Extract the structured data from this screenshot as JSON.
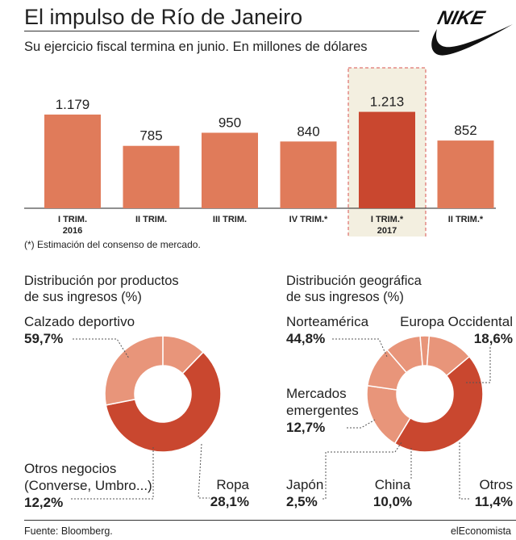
{
  "header": {
    "title": "El impulso de Río de Janeiro",
    "subtitle": "Su ejercicio fiscal termina en junio. En millones de dólares"
  },
  "logo_text": "NIKE",
  "colors": {
    "bar": "#e07b5a",
    "bar_highlight": "#c9472f",
    "highlight_bg": "#f3efe0",
    "highlight_border": "#d9534f",
    "pie_dark": "#c9472f",
    "pie_light": "#e8957a",
    "leader": "#555555"
  },
  "footnote": "(*) Estimación del consenso de mercado.",
  "products": {
    "title_line1": "Distribución por productos",
    "title_line2": "de sus ingresos (%)"
  },
  "geo": {
    "title_line1": "Distribución geográfica",
    "title_line2": "de sus ingresos (%)"
  },
  "footer": {
    "source": "Fuente: Bloomberg.",
    "brand": "elEconomista"
  },
  "chart_data": [
    {
      "type": "bar",
      "categories": [
        "I TRIM.",
        "II TRIM.",
        "III TRIM.",
        "IV TRIM.*",
        "I TRIM.*",
        "II TRIM.*"
      ],
      "year_labels": [
        "2016",
        "",
        "",
        "",
        "2017",
        ""
      ],
      "values": [
        1179,
        785,
        950,
        840,
        1213,
        852
      ],
      "value_labels": [
        "1.179",
        "785",
        "950",
        "840",
        "1.213",
        "852"
      ],
      "highlight_index": 4,
      "ylim": [
        0,
        1300
      ]
    },
    {
      "type": "pie",
      "labels": [
        "Calzado deportivo",
        "Ropa",
        "Otros negocios (Converse, Umbro...)"
      ],
      "values": [
        59.7,
        28.1,
        12.2
      ],
      "value_labels": [
        "59,7%",
        "28,1%",
        "12,2%"
      ],
      "label_lines": [
        [
          "Calzado deportivo"
        ],
        [
          "Ropa"
        ],
        [
          "Otros negocios",
          "(Converse, Umbro...)"
        ]
      ]
    },
    {
      "type": "pie",
      "labels": [
        "Norteamérica",
        "Europa Occidental",
        "Otros",
        "China",
        "Japón",
        "Mercados emergentes"
      ],
      "values": [
        44.8,
        18.6,
        11.4,
        10.0,
        2.5,
        12.7
      ],
      "value_labels": [
        "44,8%",
        "18,6%",
        "11,4%",
        "10,0%",
        "2,5%",
        "12,7%"
      ],
      "label_lines": [
        [
          "Norteamérica"
        ],
        [
          "Europa Occidental"
        ],
        [
          "Otros"
        ],
        [
          "China"
        ],
        [
          "Japón"
        ],
        [
          "Mercados",
          "emergentes"
        ]
      ]
    }
  ]
}
